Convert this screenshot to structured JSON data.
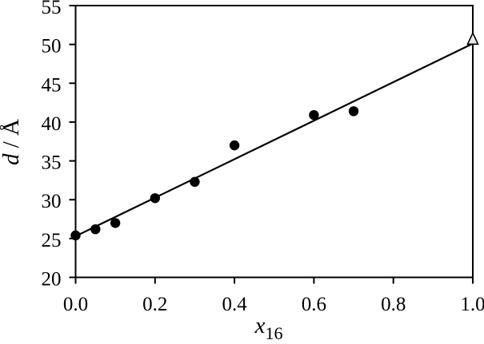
{
  "figure": {
    "background": "#ffffff",
    "axis_color": "#000000",
    "text_color": "#000000"
  },
  "chart_data": {
    "type": "scatter",
    "title": "",
    "xlabel": "x16",
    "ylabel": "d / Å",
    "xlabel_parts": {
      "italic": "x",
      "subscript": "16"
    },
    "ylabel_parts": {
      "italic": "d",
      "rest": " / Å"
    },
    "xlim": [
      0.0,
      1.0
    ],
    "ylim": [
      20,
      55
    ],
    "x_tick_labels": [
      "0.0",
      "0.2",
      "0.4",
      "0.6",
      "0.8",
      "1.0"
    ],
    "y_tick_labels": [
      "20",
      "25",
      "30",
      "35",
      "40",
      "45",
      "50",
      "55"
    ],
    "grid": false,
    "legend": false,
    "series": [
      {
        "name": "measured-points",
        "marker": "filled-circle",
        "marker_color": "#000000",
        "points": [
          {
            "x": 0.0,
            "y": 25.4
          },
          {
            "x": 0.05,
            "y": 26.2
          },
          {
            "x": 0.1,
            "y": 27.0
          },
          {
            "x": 0.2,
            "y": 30.2
          },
          {
            "x": 0.3,
            "y": 32.3
          },
          {
            "x": 0.4,
            "y": 37.0
          },
          {
            "x": 0.6,
            "y": 40.9
          },
          {
            "x": 0.7,
            "y": 41.4
          }
        ]
      },
      {
        "name": "endpoint-point",
        "marker": "open-triangle",
        "marker_fill": "#e8e8e8",
        "marker_stroke": "#000000",
        "points": [
          {
            "x": 1.0,
            "y": 50.6
          }
        ]
      }
    ],
    "fit_line": {
      "x1": 0.0,
      "y1": 25.3,
      "x2": 1.0,
      "y2": 50.1
    }
  }
}
